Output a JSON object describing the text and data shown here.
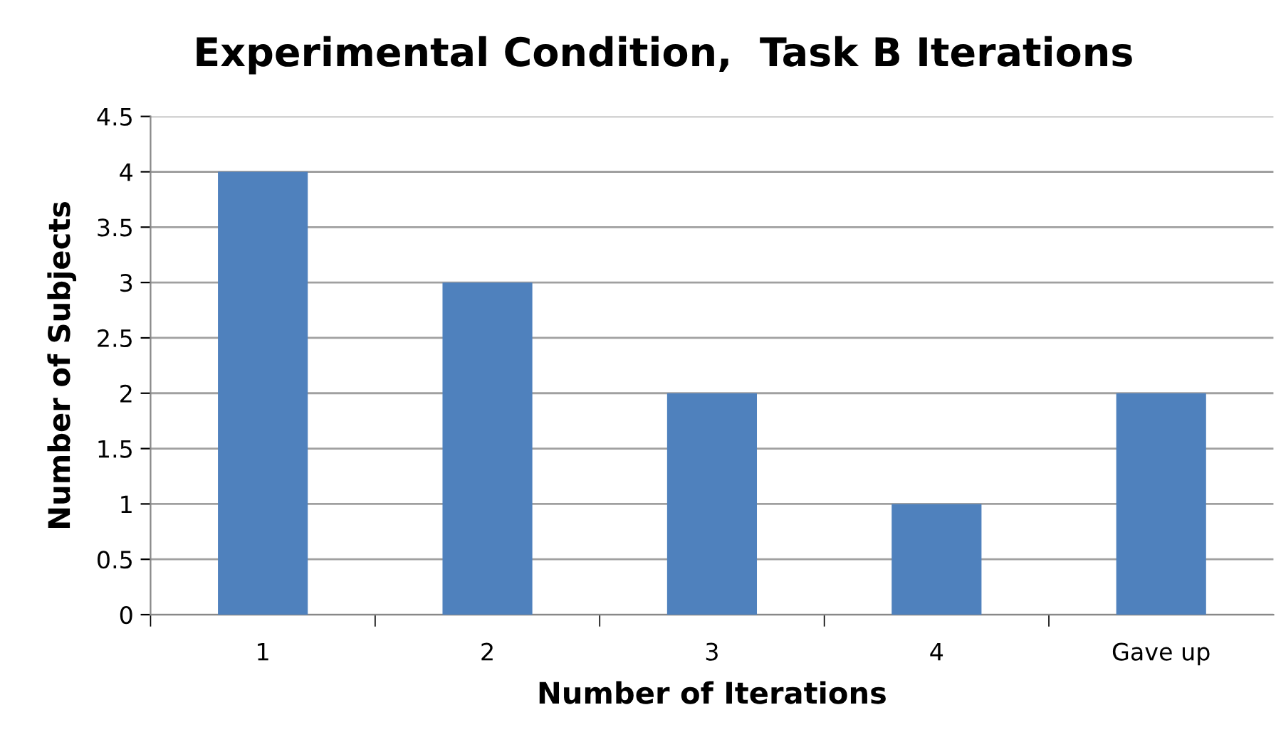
{
  "chart_data": {
    "type": "bar",
    "title": "Experimental Condition,  Task B Iterations",
    "xlabel": "Number of Iterations",
    "ylabel": "Number of Subjects",
    "categories": [
      "1",
      "2",
      "3",
      "4",
      "Gave up"
    ],
    "values": [
      4,
      3,
      2,
      1,
      2
    ],
    "color": "#4f81bd",
    "ylim": [
      0,
      4.5
    ],
    "yticks": [
      0,
      0.5,
      1,
      1.5,
      2,
      2.5,
      3,
      3.5,
      4,
      4.5
    ],
    "grid": "y",
    "legend": false
  }
}
